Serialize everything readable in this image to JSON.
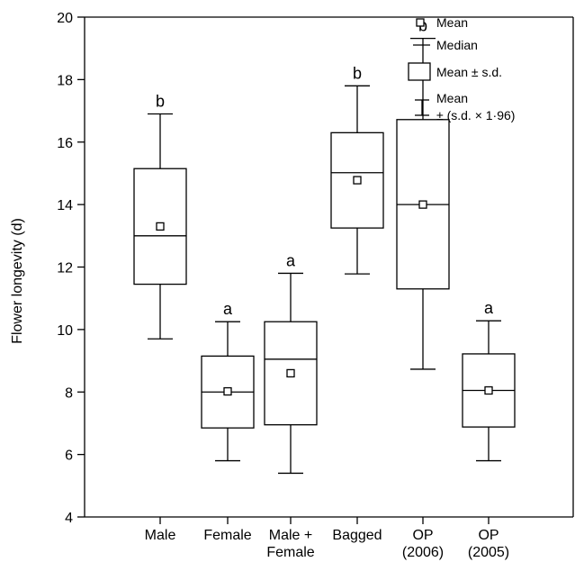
{
  "chart_data": {
    "type": "box",
    "ylabel": "Flower longevity (d)",
    "ylim": [
      4,
      20
    ],
    "yticks": [
      "4",
      "6",
      "8",
      "10",
      "12",
      "14",
      "16",
      "18",
      "20"
    ],
    "ytick_values": [
      4,
      6,
      8,
      10,
      12,
      14,
      16,
      18,
      20
    ],
    "grid": false,
    "legend_position": "top-right",
    "categories": [
      {
        "label_lines": [
          "Male"
        ],
        "mean": 13.3,
        "median": 13.0,
        "box_low": 11.45,
        "box_high": 15.15,
        "whisker_low": 9.7,
        "whisker_high": 16.9,
        "letter": "b"
      },
      {
        "label_lines": [
          "Female"
        ],
        "mean": 8.02,
        "median": 8.0,
        "box_low": 6.85,
        "box_high": 9.15,
        "whisker_low": 5.8,
        "whisker_high": 10.25,
        "letter": "a"
      },
      {
        "label_lines": [
          "Male +",
          "Female"
        ],
        "mean": 8.6,
        "median": 9.05,
        "box_low": 6.95,
        "box_high": 10.25,
        "whisker_low": 5.4,
        "whisker_high": 11.8,
        "letter": "a"
      },
      {
        "label_lines": [
          "Bagged"
        ],
        "mean": 14.78,
        "median": 15.02,
        "box_low": 13.25,
        "box_high": 16.3,
        "whisker_low": 11.78,
        "whisker_high": 17.8,
        "letter": "b"
      },
      {
        "label_lines": [
          "OP",
          "(2006)"
        ],
        "mean": 14.0,
        "median": 14.0,
        "box_low": 11.3,
        "box_high": 16.72,
        "whisker_low": 8.73,
        "whisker_high": 19.32,
        "letter": "b"
      },
      {
        "label_lines": [
          "OP",
          "(2005)"
        ],
        "mean": 8.05,
        "median": 8.05,
        "box_low": 6.88,
        "box_high": 9.22,
        "whisker_low": 5.8,
        "whisker_high": 10.28,
        "letter": "a"
      }
    ],
    "legend": {
      "mean": "Mean",
      "median": "Median",
      "box": "Mean ± s.d.",
      "whisker_line1": "Mean",
      "whisker_line2": "± (s.d. × 1·96)"
    }
  }
}
